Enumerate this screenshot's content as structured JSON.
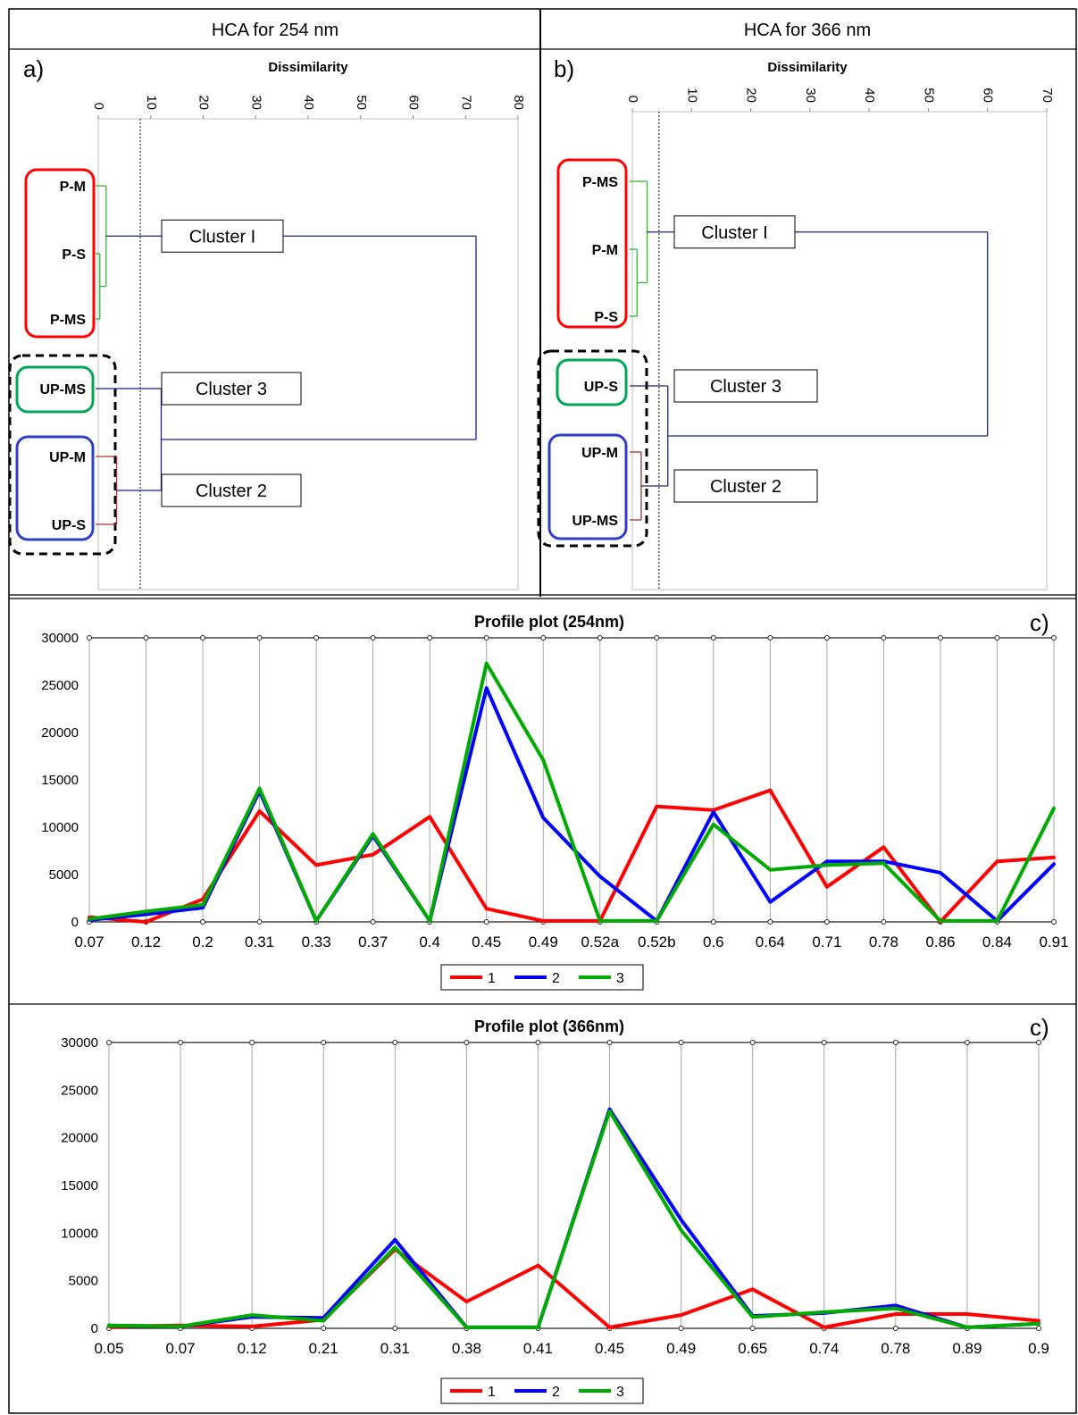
{
  "panels": {
    "a": {
      "header": "HCA for 254 nm",
      "letter": "a)"
    },
    "b": {
      "header": "HCA for 366 nm",
      "letter": "b)"
    }
  },
  "chart_data": [
    {
      "type": "dendrogram",
      "header": "HCA for 254 nm",
      "panel_label": "a)",
      "axis_title": "Dissimilarity",
      "ticks": [
        0,
        10,
        20,
        30,
        40,
        50,
        60,
        70,
        80
      ],
      "xlim": [
        0,
        80
      ],
      "truncation_level": 8,
      "leaves": [
        "P-M",
        "P-S",
        "P-MS",
        "UP-MS",
        "UP-M",
        "UP-S"
      ],
      "leaf_colors": [
        "#ff0000",
        "#ff0000",
        "#ff0000",
        "#00a651",
        "#2e3fc5",
        "#2e3fc5"
      ],
      "merges": [
        {
          "a": "P-S",
          "b": "P-MS",
          "height": 0.3,
          "color": "#2db82d"
        },
        {
          "a": "P-M",
          "b": "P-S+P-MS",
          "height": 1.5,
          "color": "#2db82d"
        },
        {
          "a": "UP-M",
          "b": "UP-S",
          "height": 3.5,
          "color": "#b0302c"
        },
        {
          "a": "UP-MS",
          "b": "UP-M+UP-S",
          "height": 12,
          "color": "#1f1f8c"
        },
        {
          "a": "Cluster I",
          "b": "Clusters 2+3",
          "height": 72,
          "color": "#1f1f8c"
        }
      ],
      "cluster_labels": [
        "Cluster I",
        "Cluster  3",
        "Cluster  2"
      ]
    },
    {
      "type": "dendrogram",
      "header": "HCA for 366 nm",
      "panel_label": "b)",
      "axis_title": "Dissimilarity",
      "ticks": [
        0,
        10,
        20,
        30,
        40,
        50,
        60,
        70
      ],
      "xlim": [
        0,
        70
      ],
      "truncation_level": 4.5,
      "leaves": [
        "P-MS",
        "P-M",
        "P-S",
        "UP-S",
        "UP-M",
        "UP-MS"
      ],
      "leaf_colors": [
        "#ff0000",
        "#ff0000",
        "#ff0000",
        "#00a651",
        "#2e3fc5",
        "#2e3fc5"
      ],
      "merges": [
        {
          "a": "P-M",
          "b": "P-S",
          "height": 0.8,
          "color": "#2db82d"
        },
        {
          "a": "P-MS",
          "b": "P-M+P-S",
          "height": 2.5,
          "color": "#2db82d"
        },
        {
          "a": "UP-M",
          "b": "UP-MS",
          "height": 1.5,
          "color": "#b0302c"
        },
        {
          "a": "UP-S",
          "b": "UP-M+UP-MS",
          "height": 6,
          "color": "#1f1f8c"
        },
        {
          "a": "Cluster I",
          "b": "Clusters 2+3",
          "height": 60,
          "color": "#1f1f8c"
        }
      ],
      "cluster_labels": [
        "Cluster I",
        "Cluster  3",
        "Cluster  2"
      ]
    },
    {
      "type": "line",
      "title": "Profile plot (254nm)",
      "panel_label": "c)",
      "categories": [
        "0.07",
        "0.12",
        "0.2",
        "0.31",
        "0.33",
        "0.37",
        "0.4",
        "0.45",
        "0.49",
        "0.52a",
        "0.52b",
        "0.6",
        "0.64",
        "0.71",
        "0.78",
        "0.86",
        "0.84",
        "0.91"
      ],
      "ylim": [
        0,
        30000
      ],
      "yticks": [
        0,
        5000,
        10000,
        15000,
        20000,
        25000,
        30000
      ],
      "grid": true,
      "legend_position": "bottom",
      "series": [
        {
          "name": "1",
          "color": "#ff0000",
          "values": [
            500,
            0,
            2400,
            11700,
            6000,
            7100,
            11100,
            1400,
            100,
            100,
            12200,
            11800,
            13900,
            3700,
            7900,
            0,
            6400,
            6800
          ]
        },
        {
          "name": "2",
          "color": "#0000ff",
          "values": [
            200,
            800,
            1500,
            13800,
            100,
            9100,
            100,
            24700,
            11000,
            4800,
            100,
            11600,
            2100,
            6400,
            6400,
            5200,
            100,
            6100
          ]
        },
        {
          "name": "3",
          "color": "#00aa00",
          "values": [
            300,
            1100,
            1800,
            14100,
            100,
            9300,
            100,
            27300,
            17100,
            100,
            100,
            10300,
            5500,
            6000,
            6200,
            100,
            100,
            12000
          ]
        }
      ]
    },
    {
      "type": "line",
      "title": "Profile plot (366nm)",
      "panel_label": "c)",
      "categories": [
        "0.05",
        "0.07",
        "0.12",
        "0.21",
        "0.31",
        "0.38",
        "0.41",
        "0.45",
        "0.49",
        "0.65",
        "0.74",
        "0.78",
        "0.89",
        "0.9"
      ],
      "ylim": [
        0,
        30000
      ],
      "yticks": [
        0,
        5000,
        10000,
        15000,
        20000,
        25000,
        30000
      ],
      "grid": true,
      "legend_position": "bottom",
      "series": [
        {
          "name": "1",
          "color": "#ff0000",
          "values": [
            200,
            300,
            200,
            900,
            8300,
            2800,
            6600,
            100,
            1400,
            4100,
            100,
            1500,
            1500,
            800
          ]
        },
        {
          "name": "2",
          "color": "#0000ff",
          "values": [
            300,
            200,
            1200,
            1100,
            9300,
            100,
            100,
            23000,
            11400,
            1300,
            1600,
            2400,
            100,
            500
          ]
        },
        {
          "name": "3",
          "color": "#00aa00",
          "values": [
            300,
            200,
            1400,
            800,
            8500,
            100,
            100,
            22800,
            10300,
            1200,
            1700,
            2100,
            100,
            500
          ]
        }
      ]
    }
  ]
}
